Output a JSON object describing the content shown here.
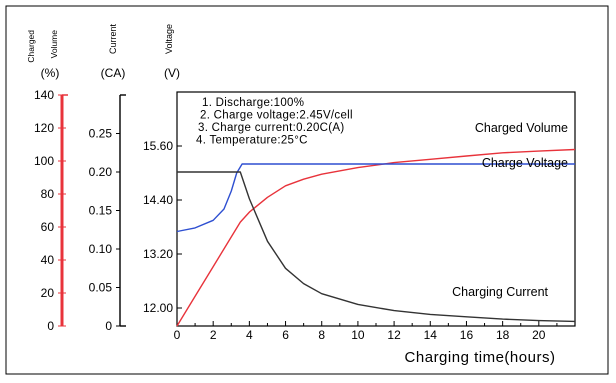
{
  "chart_data": {
    "type": "line",
    "axis_headers": {
      "charged_volume": "Charged Volume",
      "current": "Current",
      "voltage": "Voltage",
      "charged_volume_unit": "(%)",
      "current_unit": "(CA)",
      "voltage_unit": "(V)"
    },
    "xlabel": "Charging time(hours)",
    "xlim": [
      0,
      22
    ],
    "x_ticks": [
      "0",
      "2",
      "4",
      "6",
      "8",
      "10",
      "12",
      "14",
      "16",
      "18",
      "20"
    ],
    "y_axes": {
      "charged_volume": {
        "range": [
          0,
          140
        ],
        "ticks": [
          "0",
          "20",
          "40",
          "60",
          "80",
          "100",
          "120",
          "140"
        ],
        "color": "#e8333b"
      },
      "current": {
        "range": [
          0,
          0.3
        ],
        "ticks": [
          "0",
          "0.05",
          "0.10",
          "0.15",
          "0.20",
          "0.25"
        ],
        "color": "#000000"
      },
      "voltage": {
        "range": [
          11.6,
          16.8
        ],
        "ticks": [
          "12.00",
          "13.20",
          "14.40",
          "15.60"
        ],
        "color": "#000000"
      }
    },
    "conditions": [
      "1. Discharge:100%",
      "2. Charge voltage:2.45V/cell",
      "3. Charge current:0.20C(A)",
      "4. Temperature:25°C"
    ],
    "series": [
      {
        "name": "Charged Volume",
        "axis": "charged_volume",
        "color": "#e8333b",
        "x": [
          0,
          1,
          2,
          3,
          3.5,
          4,
          5,
          6,
          7,
          8,
          10,
          12,
          14,
          16,
          18,
          20,
          22
        ],
        "y": [
          0,
          18,
          36,
          54,
          63,
          69,
          78,
          85,
          89,
          92,
          96,
          99,
          101,
          103,
          105,
          106,
          107
        ]
      },
      {
        "name": "Charge Voltage",
        "axis": "voltage",
        "color": "#2e4fd1",
        "x": [
          0,
          1,
          2,
          2.6,
          3,
          3.3,
          3.6,
          4,
          6,
          10,
          14,
          18,
          22
        ],
        "y": [
          13.7,
          13.78,
          13.95,
          14.2,
          14.6,
          15.0,
          15.2,
          15.2,
          15.2,
          15.2,
          15.2,
          15.2,
          15.2
        ]
      },
      {
        "name": "Charging Current",
        "axis": "current",
        "color": "#333333",
        "x": [
          0,
          1,
          2,
          3,
          3.5,
          4,
          5,
          6,
          7,
          8,
          10,
          12,
          14,
          16,
          18,
          20,
          22
        ],
        "y": [
          0.2,
          0.2,
          0.2,
          0.2,
          0.2,
          0.165,
          0.11,
          0.075,
          0.055,
          0.042,
          0.028,
          0.02,
          0.015,
          0.012,
          0.009,
          0.007,
          0.006
        ]
      }
    ],
    "grid": false
  }
}
